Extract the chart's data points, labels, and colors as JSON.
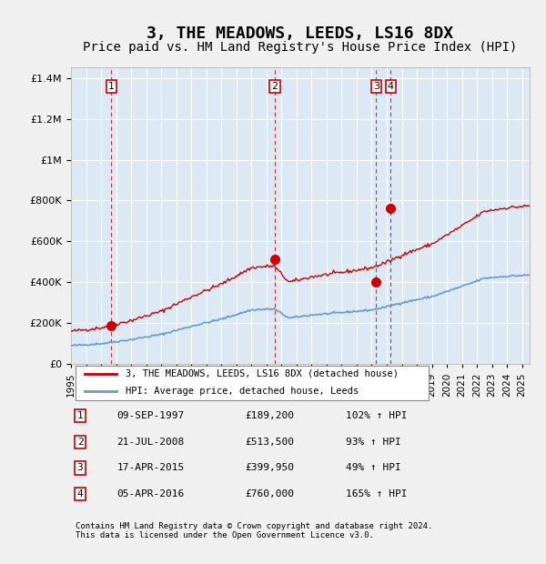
{
  "title": "3, THE MEADOWS, LEEDS, LS16 8DX",
  "subtitle": "Price paid vs. HM Land Registry's House Price Index (HPI)",
  "title_fontsize": 13,
  "subtitle_fontsize": 10,
  "background_color": "#dce9f5",
  "plot_bg_color": "#dce9f5",
  "grid_color": "#ffffff",
  "legend_label_red": "3, THE MEADOWS, LEEDS, LS16 8DX (detached house)",
  "legend_label_blue": "HPI: Average price, detached house, Leeds",
  "footer": "Contains HM Land Registry data © Crown copyright and database right 2024.\nThis data is licensed under the Open Government Licence v3.0.",
  "sales": [
    {
      "num": 1,
      "date": "09-SEP-1997",
      "price": 189200,
      "pct": "102%",
      "year": 1997.69
    },
    {
      "num": 2,
      "date": "21-JUL-2008",
      "price": 513500,
      "pct": "93%",
      "year": 2008.55
    },
    {
      "num": 3,
      "date": "17-APR-2015",
      "price": 399950,
      "pct": "49%",
      "year": 2015.29
    },
    {
      "num": 4,
      "date": "05-APR-2016",
      "price": 760000,
      "pct": "165%",
      "year": 2016.26
    }
  ],
  "ylim": [
    0,
    1450000
  ],
  "xlim_start": 1995.0,
  "xlim_end": 2025.5,
  "red_color": "#cc0000",
  "blue_color": "#6699cc",
  "vline_color": "#cc0000",
  "marker_color": "#cc0000"
}
